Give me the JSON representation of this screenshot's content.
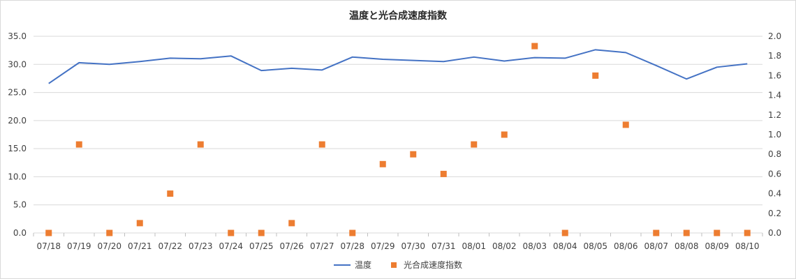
{
  "chart_data": {
    "type": "line",
    "title": "温度と光合成速度指数",
    "categories": [
      "07/18",
      "07/19",
      "07/20",
      "07/21",
      "07/22",
      "07/23",
      "07/24",
      "07/25",
      "07/26",
      "07/27",
      "07/28",
      "07/29",
      "07/30",
      "07/31",
      "08/01",
      "08/02",
      "08/03",
      "08/04",
      "08/05",
      "08/06",
      "08/07",
      "08/08",
      "08/09",
      "08/10"
    ],
    "y_left": {
      "min": 0,
      "max": 35,
      "step": 5,
      "ticks": [
        "0.0",
        "5.0",
        "10.0",
        "15.0",
        "20.0",
        "25.0",
        "30.0",
        "35.0"
      ]
    },
    "y_right": {
      "min": 0,
      "max": 2,
      "step": 0.2,
      "ticks": [
        "0.0",
        "0.2",
        "0.4",
        "0.6",
        "0.8",
        "1.0",
        "1.2",
        "1.4",
        "1.6",
        "1.8",
        "2.0"
      ]
    },
    "grid": true,
    "legend_position": "bottom",
    "series": [
      {
        "name": "温度",
        "kind": "line",
        "axis": "left",
        "color": "#4472c4",
        "values": [
          26.6,
          30.3,
          30.0,
          30.5,
          31.1,
          31.0,
          31.5,
          28.9,
          29.3,
          29.0,
          31.3,
          30.9,
          30.7,
          30.5,
          31.3,
          30.6,
          31.2,
          31.1,
          32.6,
          32.1,
          29.8,
          27.4,
          29.5,
          30.1
        ]
      },
      {
        "name": "光合成速度指数",
        "kind": "scatter",
        "axis": "right",
        "color": "#ed7d31",
        "values": [
          0.0,
          0.9,
          0.0,
          0.1,
          0.4,
          0.9,
          0.0,
          0.0,
          0.1,
          0.9,
          0.0,
          0.7,
          0.8,
          0.6,
          0.9,
          1.0,
          1.9,
          0.0,
          1.6,
          1.1,
          0.0,
          0.0,
          0.0,
          0.0
        ]
      }
    ]
  }
}
